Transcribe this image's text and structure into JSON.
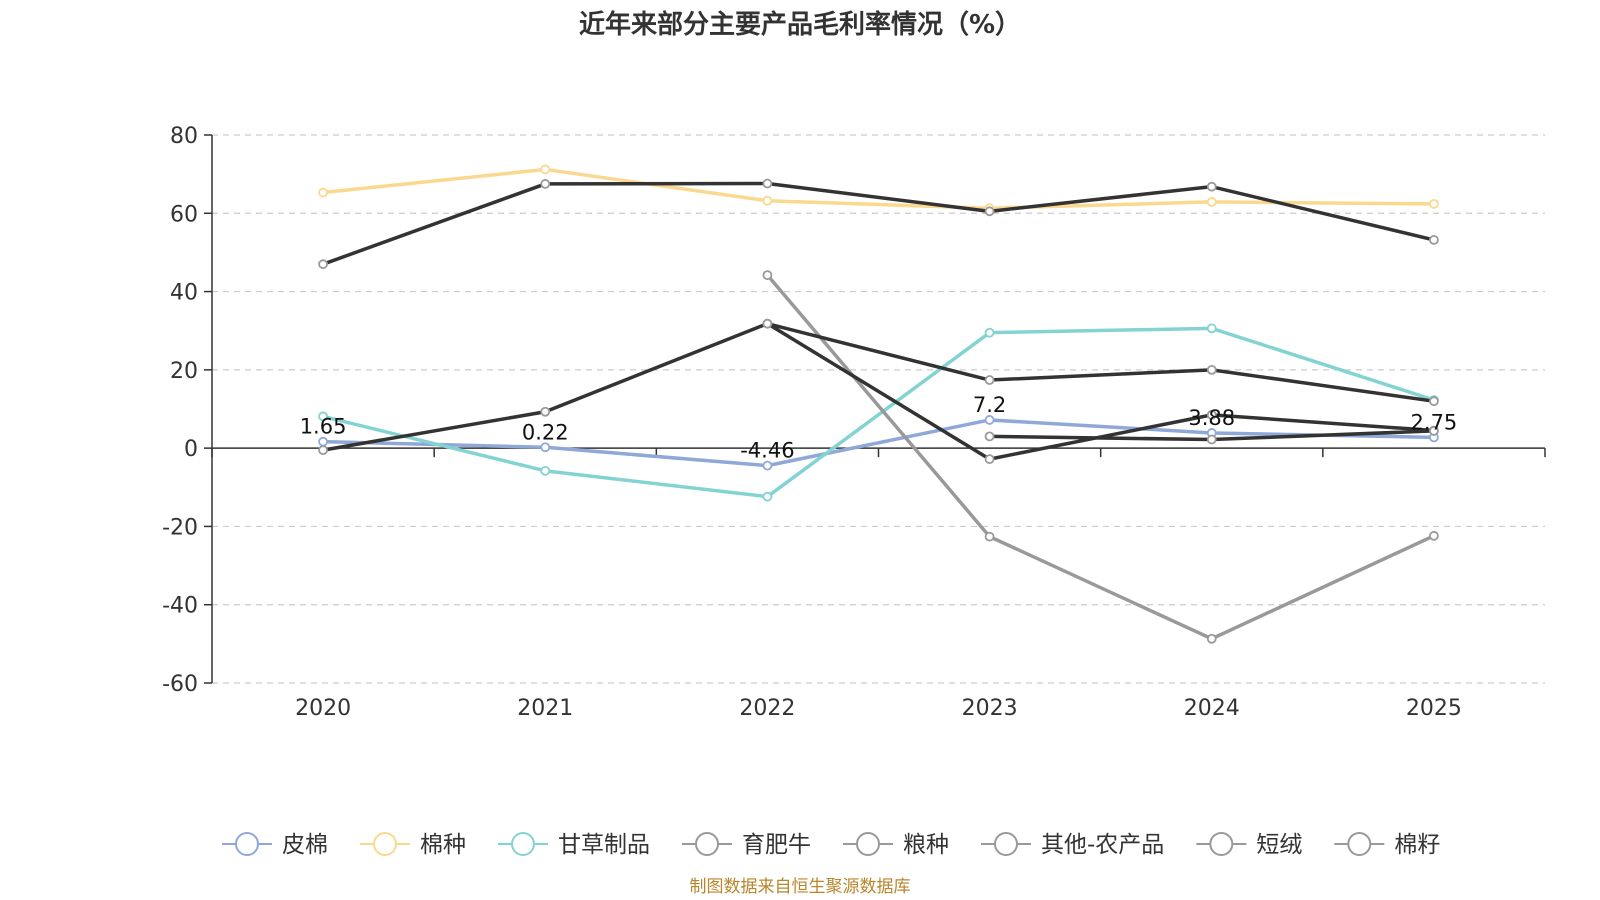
{
  "chart_data": {
    "type": "line",
    "title": "近年来部分主要产品毛利率情况（%）",
    "x": [
      "2020",
      "2021",
      "2022",
      "2023",
      "2024",
      "2025"
    ],
    "ylim": [
      -60,
      80
    ],
    "y_ticks": [
      "80",
      "60",
      "40",
      "20",
      "0",
      "-20",
      "-40",
      "-60"
    ],
    "y_tick_values": [
      80,
      60,
      40,
      20,
      0,
      -20,
      -40,
      -60
    ],
    "grid": true,
    "legend_position": "bottom",
    "series": [
      {
        "name": "皮棉",
        "color": "#8fa8d8",
        "values": [
          1.65,
          0.22,
          -4.46,
          7.2,
          3.88,
          2.75
        ],
        "labels": [
          "1.65",
          "0.22",
          "-4.46",
          "7.2",
          "3.88",
          "2.75"
        ]
      },
      {
        "name": "棉种",
        "color": "#fbd88f",
        "values": [
          65.3,
          71.2,
          63.2,
          61.3,
          62.9,
          62.4
        ]
      },
      {
        "name": "甘草制品",
        "color": "#82d3d1",
        "values": [
          8.1,
          -5.8,
          -12.4,
          29.5,
          30.6,
          12.3
        ]
      },
      {
        "name": "育肥牛",
        "color": "#333333",
        "values": [
          null,
          null,
          44.2,
          -22.6,
          -48.7,
          -22.4
        ],
        "line_color": "#999999"
      },
      {
        "name": "粮种",
        "color": "#333333",
        "values": [
          47.0,
          67.5,
          67.6,
          60.5,
          66.8,
          53.2
        ]
      },
      {
        "name": "其他-农产品",
        "color": "#333333",
        "values": [
          -0.5,
          9.3,
          31.8,
          17.4,
          20.0,
          12.0
        ]
      },
      {
        "name": "短绒",
        "color": "#333333",
        "values": [
          null,
          null,
          31.8,
          -2.8,
          8.5,
          4.5
        ]
      },
      {
        "name": "棉籽",
        "color": "#333333",
        "values": [
          null,
          null,
          null,
          3.0,
          2.2,
          4.4
        ]
      }
    ],
    "source": "制图数据来自恒生聚源数据库"
  }
}
